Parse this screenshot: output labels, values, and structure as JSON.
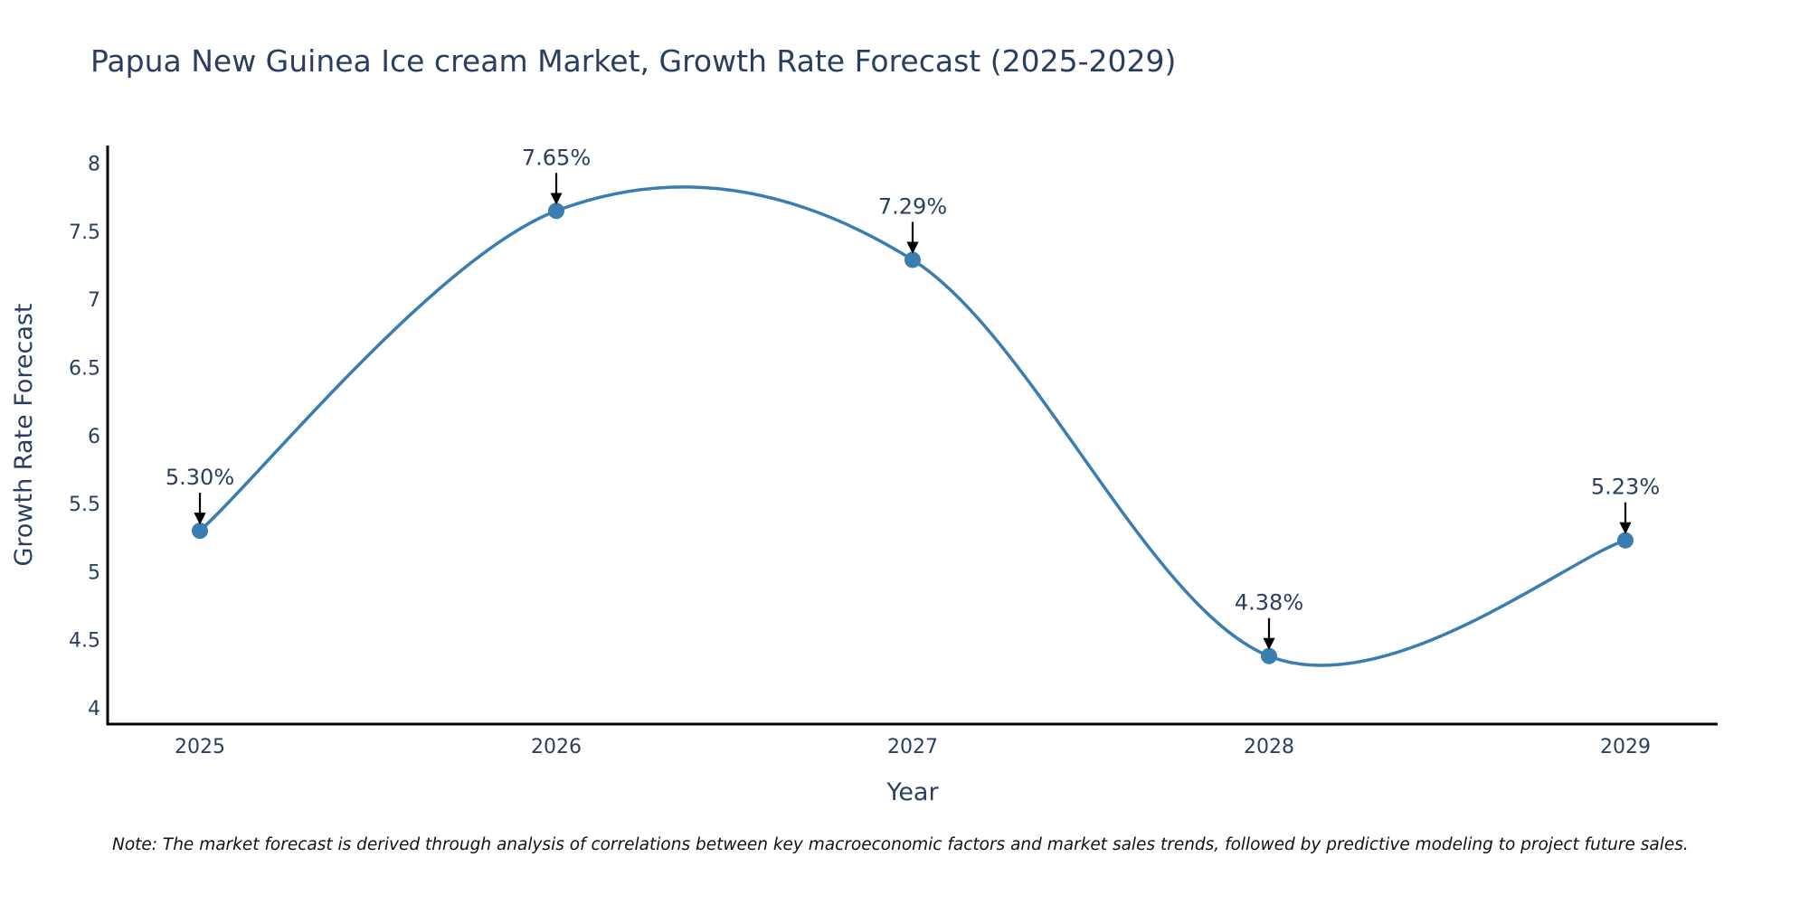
{
  "chart_data": {
    "type": "line",
    "title": "Papua New Guinea Ice cream Market, Growth Rate Forecast (2025-2029)",
    "xlabel": "Year",
    "ylabel": "Growth Rate Forecast",
    "categories": [
      "2025",
      "2026",
      "2027",
      "2028",
      "2029"
    ],
    "series": [
      {
        "name": "Growth Rate Forecast",
        "values": [
          5.3,
          7.65,
          7.29,
          4.38,
          5.23
        ],
        "labels": [
          "5.30%",
          "7.65%",
          "7.29%",
          "4.38%",
          "5.23%"
        ]
      }
    ],
    "ylim": [
      3.88,
      8.13
    ],
    "yticks": [
      4,
      4.5,
      5,
      5.5,
      6,
      6.5,
      7,
      7.5,
      8
    ],
    "ytick_labels": [
      "4",
      "4.5",
      "5",
      "5.5",
      "6",
      "6.5",
      "7",
      "7.5",
      "8"
    ],
    "grid": false,
    "line_shape": "spline",
    "colors": {
      "line": "#3a7db0",
      "marker": "#3a7db0",
      "axis": "#000000",
      "text": "#2a3f5f",
      "arrow": "#000000"
    }
  },
  "note": "Note: The market forecast is derived through analysis of correlations between key macroeconomic factors and market sales trends, followed by predictive modeling to project future sales."
}
